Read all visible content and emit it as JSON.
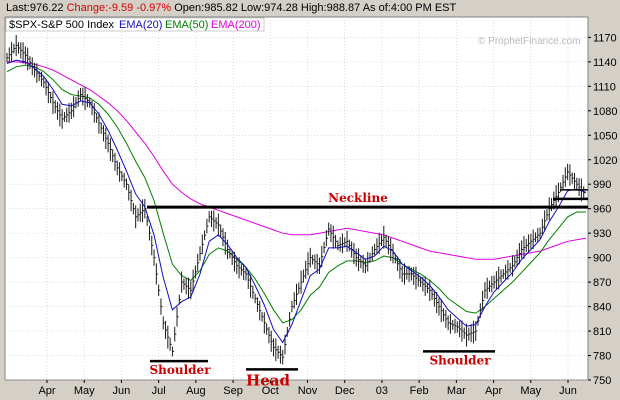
{
  "header": {
    "last_label": "Last:",
    "last_value": "976.22",
    "change_label": "Change:",
    "change_value": "-9.59",
    "change_pct": "-0.97%",
    "open_label": "Open:",
    "open_value": "985.82",
    "low_label": "Low:",
    "low_value": "974.28",
    "high_label": "High:",
    "high_value": "988.87",
    "asof_label": "As of:",
    "asof_value": "4:00 PM EST"
  },
  "legend": {
    "symbol": "$SPX-S&P 500 Index",
    "ema20": "EMA(20)",
    "ema50": "EMA(50)",
    "ema200": "EMA(200)"
  },
  "watermark": "© ProphetFinance.com",
  "colors": {
    "background": "#d4d0c8",
    "plot_bg": "#ffffff",
    "price": "#1a1a1a",
    "ema20": "#1010c0",
    "ema50": "#008000",
    "ema200": "#e000e0",
    "annotation": "#cc0000",
    "change_negative": "#d40000"
  },
  "chart_data": {
    "type": "line",
    "title": "",
    "price_style": "ohlc-bars",
    "yaxis_side": "right",
    "ylim": [
      750,
      1195
    ],
    "y_ticks": [
      750,
      780,
      810,
      840,
      870,
      900,
      930,
      960,
      990,
      1020,
      1050,
      1080,
      1110,
      1140,
      1170
    ],
    "x_ticks": [
      "Apr",
      "May",
      "Jun",
      "Jul",
      "Aug",
      "Sep",
      "Oct",
      "Nov",
      "Dec",
      "03",
      "Feb",
      "Mar",
      "Apr",
      "May",
      "Jun"
    ],
    "grid": true,
    "legend_position": "top-left",
    "series": [
      {
        "name": "$SPX-S&P 500 Index",
        "values": [
          1145,
          1160,
          1148,
          1130,
          1115,
          1090,
          1070,
          1080,
          1100,
          1090,
          1065,
          1040,
          1010,
          990,
          950,
          960,
          900,
          820,
          785,
          870,
          860,
          905,
          950,
          940,
          910,
          890,
          880,
          850,
          820,
          790,
          778,
          840,
          870,
          900,
          890,
          935,
          915,
          920,
          900,
          890,
          910,
          925,
          905,
          880,
          880,
          870,
          860,
          840,
          820,
          815,
          805,
          810,
          860,
          870,
          880,
          890,
          910,
          920,
          930,
          960,
          980,
          1005,
          990,
          976
        ]
      },
      {
        "name": "EMA(20)",
        "values": [
          1138,
          1142,
          1140,
          1132,
          1122,
          1106,
          1088,
          1086,
          1092,
          1090,
          1076,
          1056,
          1032,
          1006,
          978,
          962,
          928,
          876,
          836,
          846,
          852,
          880,
          920,
          928,
          916,
          900,
          888,
          866,
          842,
          812,
          796,
          818,
          848,
          878,
          886,
          912,
          912,
          914,
          906,
          898,
          902,
          914,
          908,
          892,
          884,
          876,
          866,
          852,
          836,
          826,
          816,
          818,
          840,
          858,
          870,
          882,
          898,
          910,
          922,
          944,
          962,
          982,
          984,
          980
        ]
      },
      {
        "name": "EMA(50)",
        "values": [
          1128,
          1134,
          1136,
          1134,
          1128,
          1118,
          1106,
          1100,
          1098,
          1096,
          1088,
          1076,
          1060,
          1040,
          1018,
          998,
          970,
          930,
          892,
          878,
          872,
          884,
          904,
          912,
          908,
          898,
          888,
          874,
          856,
          836,
          820,
          824,
          836,
          854,
          864,
          882,
          890,
          896,
          896,
          894,
          896,
          902,
          900,
          892,
          886,
          880,
          872,
          862,
          850,
          842,
          834,
          832,
          840,
          850,
          860,
          870,
          882,
          894,
          906,
          922,
          936,
          950,
          956,
          956
        ]
      },
      {
        "name": "EMA(200)",
        "values": [
          1140,
          1140,
          1139,
          1137,
          1134,
          1130,
          1124,
          1118,
          1112,
          1106,
          1098,
          1090,
          1080,
          1068,
          1054,
          1040,
          1024,
          1006,
          990,
          980,
          972,
          966,
          962,
          958,
          954,
          950,
          946,
          942,
          938,
          934,
          930,
          928,
          928,
          928,
          930,
          932,
          934,
          936,
          934,
          932,
          930,
          928,
          924,
          920,
          916,
          912,
          908,
          906,
          904,
          902,
          900,
          898,
          898,
          898,
          900,
          902,
          904,
          906,
          908,
          912,
          916,
          920,
          922,
          924
        ]
      }
    ],
    "neckline": {
      "label": "Neckline",
      "value": 962
    },
    "annotations": [
      {
        "label": "Shoulder",
        "value": 778
      },
      {
        "label": "Head",
        "value": 768
      },
      {
        "label": "Shoulder",
        "value": 790
      }
    ]
  }
}
